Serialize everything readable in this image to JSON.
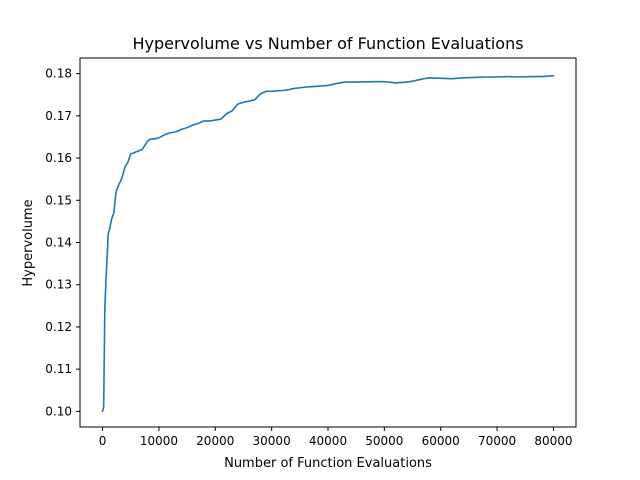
{
  "chart_data": {
    "type": "line",
    "title": "Hypervolume vs Number of Function Evaluations",
    "xlabel": "Number of Function Evaluations",
    "ylabel": "Hypervolume",
    "xlim": [
      -4000,
      84000
    ],
    "ylim": [
      0.0963,
      0.1837
    ],
    "xticks": [
      0,
      10000,
      20000,
      30000,
      40000,
      50000,
      60000,
      70000,
      80000
    ],
    "yticks": [
      0.1,
      0.11,
      0.12,
      0.13,
      0.14,
      0.15,
      0.16,
      0.17,
      0.18
    ],
    "grid": false,
    "series": [
      {
        "color": "#1f77b4",
        "x": [
          0,
          200,
          400,
          600,
          800,
          1000,
          1300,
          1600,
          2000,
          2400,
          2800,
          3200,
          3600,
          4000,
          4500,
          5000,
          5500,
          6000,
          7000,
          8000,
          8500,
          9000,
          10000,
          11000,
          12000,
          13000,
          14000,
          15000,
          16000,
          17000,
          18000,
          19000,
          20000,
          21000,
          22000,
          23000,
          24000,
          25000,
          26000,
          27000,
          28000,
          29000,
          30000,
          32000,
          33000,
          34000,
          36000,
          38000,
          40000,
          42000,
          43000,
          45000,
          48000,
          50000,
          52000,
          54000,
          55000,
          56000,
          57000,
          58000,
          60000,
          62000,
          64000,
          66000,
          68000,
          70000,
          72000,
          74000,
          76000,
          78000,
          80000
        ],
        "y": [
          0.1,
          0.101,
          0.124,
          0.131,
          0.136,
          0.142,
          0.1435,
          0.1455,
          0.147,
          0.152,
          0.1535,
          0.1545,
          0.156,
          0.158,
          0.159,
          0.161,
          0.1612,
          0.1615,
          0.162,
          0.164,
          0.1645,
          0.1645,
          0.1648,
          0.1655,
          0.166,
          0.1662,
          0.1668,
          0.1672,
          0.1678,
          0.1682,
          0.1688,
          0.1688,
          0.169,
          0.1692,
          0.1705,
          0.1712,
          0.1728,
          0.1732,
          0.1735,
          0.1738,
          0.1752,
          0.1758,
          0.1758,
          0.176,
          0.1762,
          0.1765,
          0.1768,
          0.177,
          0.1772,
          0.1778,
          0.178,
          0.178,
          0.1781,
          0.1781,
          0.1778,
          0.178,
          0.1782,
          0.1785,
          0.1788,
          0.179,
          0.1789,
          0.1788,
          0.179,
          0.1791,
          0.1792,
          0.1792,
          0.1793,
          0.1792,
          0.1793,
          0.1793,
          0.1795
        ]
      }
    ]
  }
}
